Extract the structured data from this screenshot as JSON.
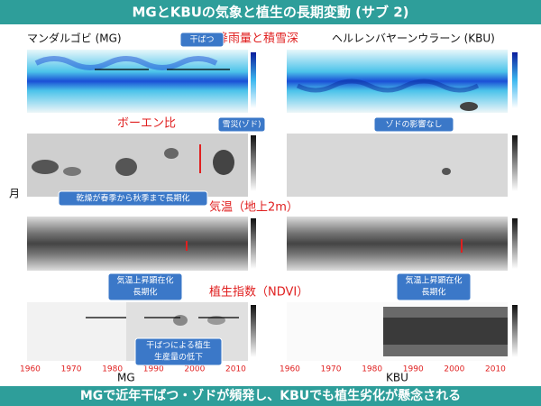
{
  "header": {
    "title": "MGとKBUの気象と植生の長期変動 (サブ 2)"
  },
  "footer": {
    "text": "MGで近年干ばつ・ゾドが頻発し、KBUでも植生劣化が懸念される"
  },
  "sites": {
    "left": "マンダルゴビ (MG)",
    "right": "ヘルレンバヤーンウラーン (KBU)",
    "left_short": "MG",
    "right_short": "KBU"
  },
  "axis": {
    "y_label": "月",
    "years": [
      "1960",
      "1970",
      "1980",
      "1990",
      "2000",
      "2010"
    ]
  },
  "panels": [
    "降雨量と積雪深",
    "ボーエン比",
    "気温（地上2m）",
    "植生指数（NDVI）"
  ],
  "callouts": [
    "干ばつ",
    "雪災(ゾド)",
    "ゾドの影響なし",
    "乾燥が春季から秋季まで長期化",
    [
      "気温上昇顕在化",
      "長期化"
    ],
    [
      "気温上昇顕在化",
      "長期化"
    ],
    [
      "干ばつによる植生",
      "生産量の低下"
    ]
  ]
}
